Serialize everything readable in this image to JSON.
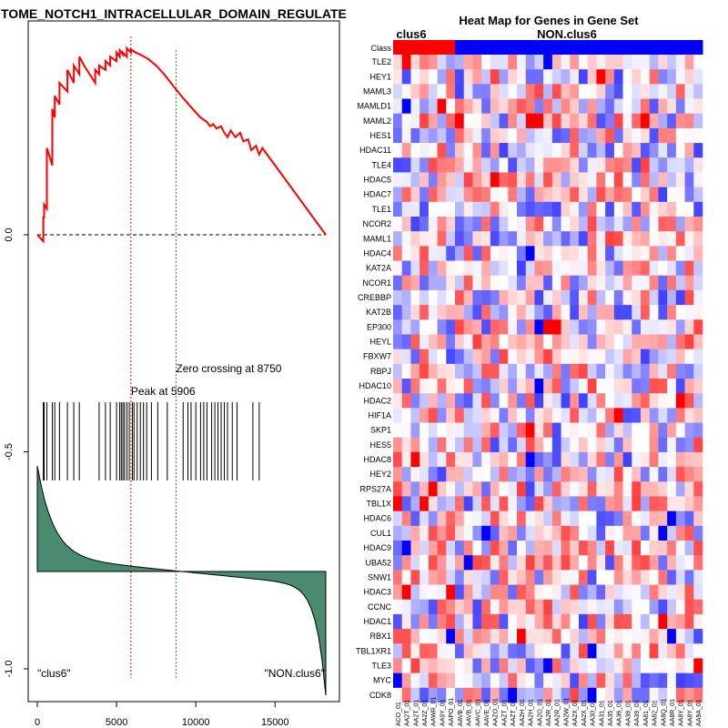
{
  "chart_data": [
    {
      "type": "line",
      "title": "TOME_NOTCH1_INTRACELLULAR_DOMAIN_REGULATE",
      "x_ticks": [
        0,
        5000,
        10000,
        15000
      ],
      "y_ticks": [
        0.0,
        -0.5,
        -1.0
      ],
      "y_tick_labels": [
        "0.0",
        "-0.5",
        "-1.0"
      ],
      "xlim": [
        0,
        18200
      ],
      "ylim": [
        -1.03,
        0.435
      ],
      "enrichment_score_series": {
        "color": "#ff0000",
        "x": [
          0,
          380,
          380,
          430,
          430,
          600,
          600,
          950,
          950,
          1100,
          1100,
          1400,
          1400,
          1900,
          1900,
          2300,
          2300,
          2650,
          2650,
          2950,
          3300,
          3650,
          3650,
          3900,
          3900,
          4300,
          4300,
          4600,
          4600,
          5000,
          5000,
          5200,
          5200,
          5400,
          5400,
          5650,
          5650,
          5906,
          5906,
          6200,
          6500,
          7000,
          7500,
          8000,
          8750,
          9200,
          9800,
          10300,
          10500,
          10700,
          10900,
          11100,
          11300,
          11600,
          11800,
          12000,
          12200,
          12500,
          12800,
          13000,
          13300,
          13500,
          13800,
          14000,
          14200,
          18200
        ],
        "y": [
          0.0,
          -0.015,
          0.04,
          0.04,
          0.07,
          0.06,
          0.2,
          0.16,
          0.29,
          0.27,
          0.32,
          0.3,
          0.35,
          0.33,
          0.38,
          0.35,
          0.39,
          0.37,
          0.41,
          0.39,
          0.37,
          0.35,
          0.38,
          0.37,
          0.39,
          0.38,
          0.4,
          0.39,
          0.41,
          0.4,
          0.42,
          0.41,
          0.425,
          0.415,
          0.42,
          0.41,
          0.43,
          0.42,
          0.427,
          0.42,
          0.415,
          0.405,
          0.39,
          0.37,
          0.335,
          0.315,
          0.29,
          0.27,
          0.265,
          0.26,
          0.25,
          0.255,
          0.245,
          0.25,
          0.235,
          0.225,
          0.24,
          0.225,
          0.235,
          0.215,
          0.22,
          0.195,
          0.205,
          0.185,
          0.2,
          0.0
        ]
      },
      "zero_line": 0.0,
      "peak": {
        "x": 5906,
        "label": "Peak at 5906",
        "color": "#ff0000"
      },
      "zero_crossing": {
        "x": 8750,
        "label": "Zero crossing at 8750",
        "color": "#00aa00"
      },
      "gene_hit_positions": [
        380,
        430,
        600,
        950,
        1100,
        1400,
        1900,
        2300,
        2650,
        3900,
        4300,
        4600,
        5000,
        5200,
        5300,
        5400,
        5500,
        5650,
        5800,
        6000,
        6100,
        6300,
        6500,
        6700,
        6900,
        7200,
        7600,
        8200,
        9200,
        9500,
        9700,
        10000,
        10300,
        10500,
        10700,
        11000,
        11200,
        11400,
        11600,
        11800,
        12000,
        12300,
        12600,
        13600,
        14000
      ],
      "ranked_metric": {
        "fill_color": "#4a8a6e",
        "left_label": "\"clus6\"",
        "right_label": "\"NON.clus6\""
      }
    },
    {
      "type": "heatmap",
      "title": "Heat Map for Genes in Gene Set",
      "class_row_label": "Class",
      "classes": [
        {
          "name": "clus6",
          "count": 7,
          "color": "#ff0000"
        },
        {
          "name": "NON.clus6",
          "count": 28,
          "color": "#0000ff"
        }
      ],
      "genes": [
        "TLE2",
        "HEY1",
        "MAML3",
        "MAMLD1",
        "MAML2",
        "HES1",
        "HDAC11",
        "TLE4",
        "HDAC5",
        "HDAC7",
        "TLE1",
        "NCOR2",
        "MAML1",
        "HDAC4",
        "KAT2A",
        "NCOR1",
        "CREBBP",
        "KAT2B",
        "EP300",
        "HEYL",
        "FBXW7",
        "RBPJ",
        "HDAC10",
        "HDAC2",
        "HIF1A",
        "SKP1",
        "HES5",
        "HDAC8",
        "HEY2",
        "RPS27A",
        "TBL1X",
        "HDAC6",
        "CUL1",
        "HDAC9",
        "UBA52",
        "SNW1",
        "HDAC3",
        "CCNC",
        "HDAC1",
        "RBX1",
        "TBL1XR1",
        "TLE3",
        "MYC",
        "CDK8"
      ],
      "sample_labels": [
        "ACO_01",
        "AA2T_01",
        "AA2T_01",
        "AA2Z_01",
        "AAWR_01",
        "AA9Y_01",
        "AAPO_01",
        "AAVB_01",
        "AAVB_01",
        "AAVC_01",
        "AAVE_01",
        "AAZO_01",
        "AAZT_01",
        "AAZT_01",
        "AA2H_01",
        "AA2H_01",
        "AA2O_01",
        "AA2R_01",
        "AA2R_01",
        "AA2W_01",
        "AA2X_01",
        "AA2X_01",
        "AA30_01",
        "AA31_01",
        "AA35_01",
        "AA36_01",
        "AA38_01",
        "AA39_01",
        "AA81_01",
        "AA82_01",
        "AA8Q_01",
        "AA8R_01",
        "AA8Y_01",
        "AA8Y_01",
        "AA9A_01"
      ],
      "color_scale": [
        "#0000ff",
        "#ffffff",
        "#ff0000"
      ]
    }
  ]
}
